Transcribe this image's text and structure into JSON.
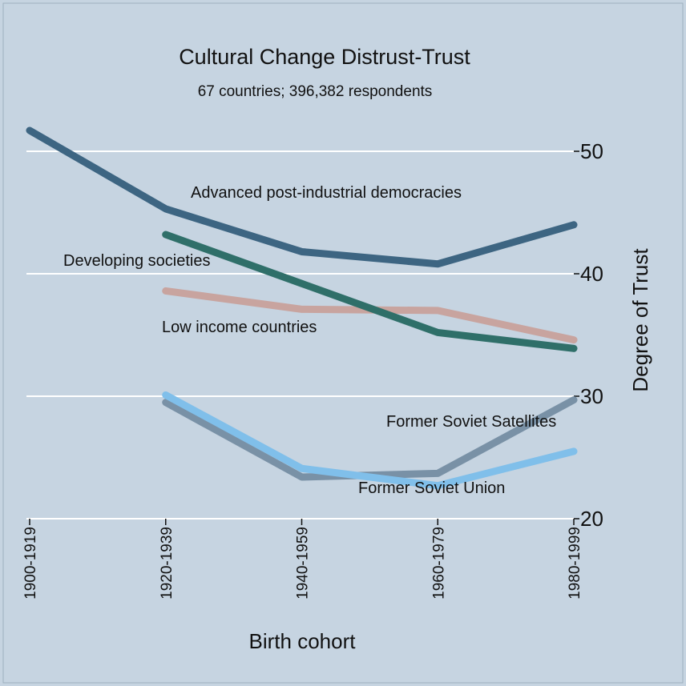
{
  "chart_data": {
    "type": "line",
    "title": "Cultural Change Distrust-Trust",
    "subtitle": "67 countries; 396,382 respondents",
    "xlabel": "Birth cohort",
    "ylabel": "Degree of Trust",
    "categories": [
      "1900-1919",
      "1920-1939",
      "1940-1959",
      "1960-1979",
      "1980-1999"
    ],
    "ylim": [
      20,
      55
    ],
    "yticks": [
      20,
      30,
      40,
      50
    ],
    "grid": true,
    "series": [
      {
        "name": "Advanced post-industrial democracies",
        "color": "#3d6582",
        "values": [
          51.7,
          45.3,
          41.8,
          40.8,
          44.0
        ]
      },
      {
        "name": "Developing societies",
        "color": "#2f6f69",
        "values": [
          null,
          43.2,
          39.2,
          35.2,
          33.9
        ]
      },
      {
        "name": "Low income countries",
        "color": "#c8a49f",
        "values": [
          null,
          38.6,
          37.1,
          37.0,
          34.6
        ]
      },
      {
        "name": "Former Soviet Satellites",
        "color": "#7991a6",
        "values": [
          null,
          29.5,
          23.4,
          23.7,
          29.7
        ]
      },
      {
        "name": "Former Soviet Union",
        "color": "#80bfea",
        "values": [
          null,
          30.1,
          24.1,
          22.7,
          25.5
        ]
      }
    ]
  }
}
